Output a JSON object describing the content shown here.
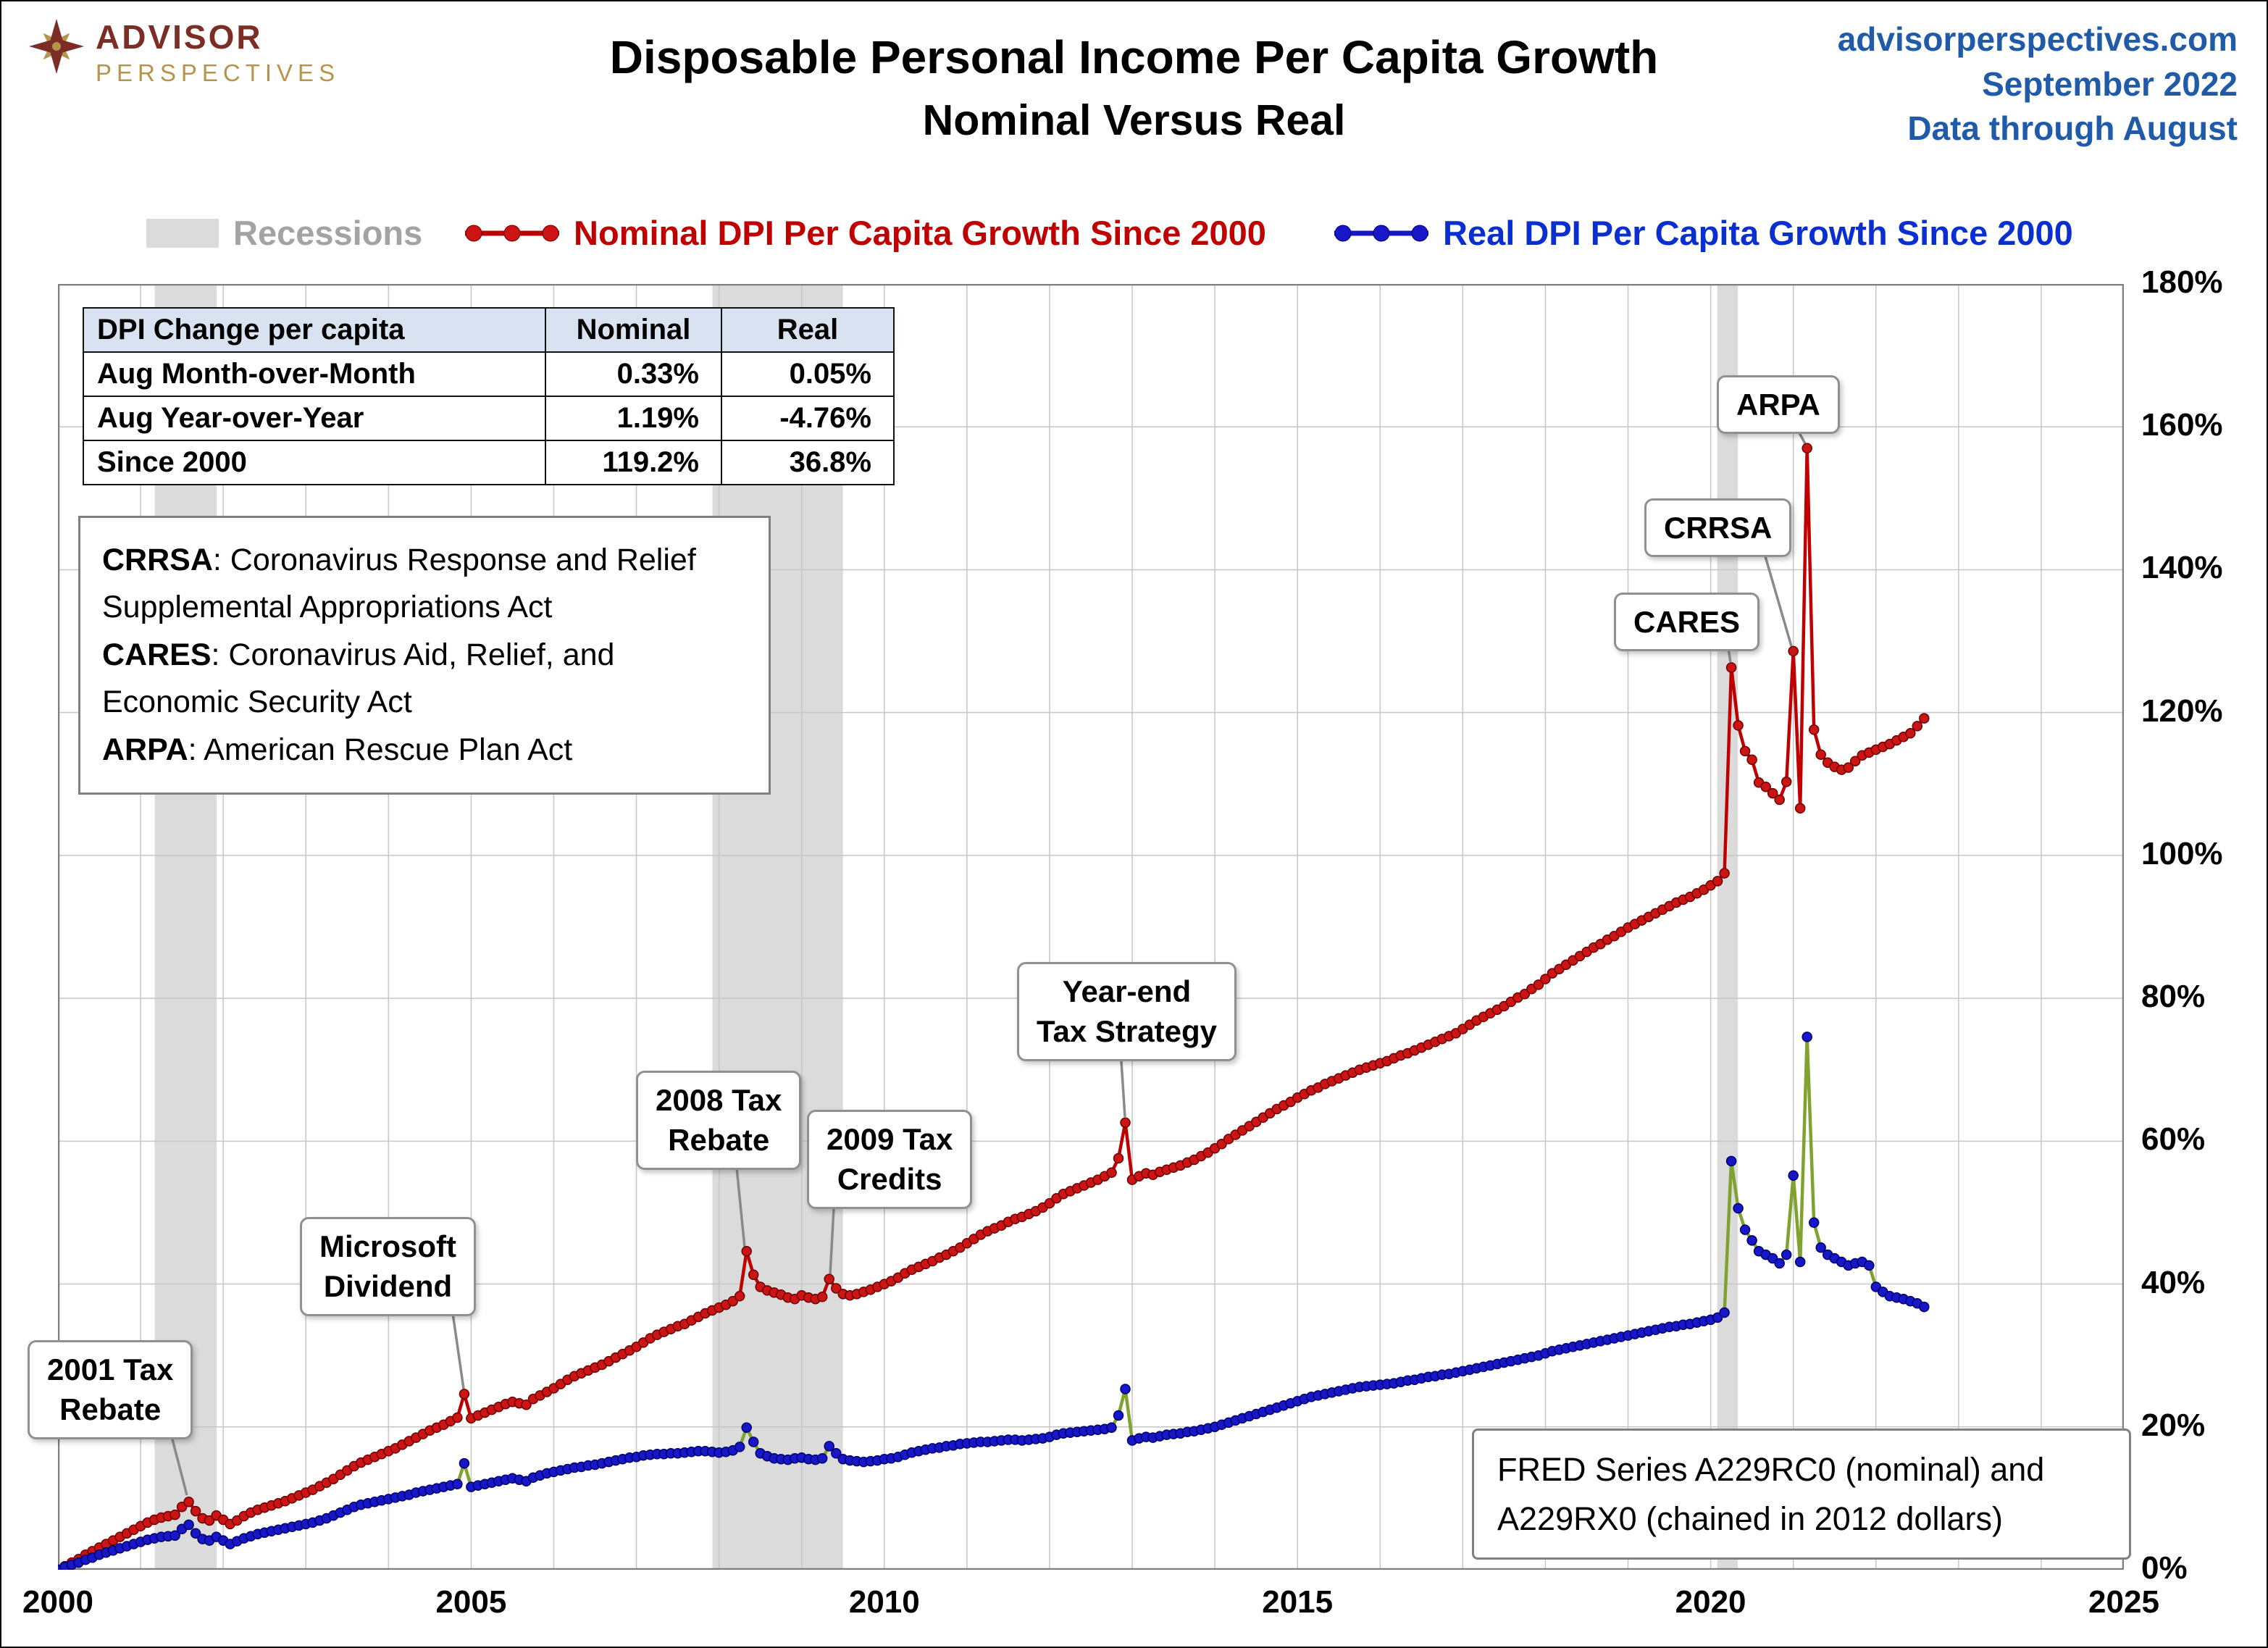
{
  "header": {
    "logo_line1": "ADVISOR",
    "logo_line2": "PERSPECTIVES",
    "title_line1": "Disposable Personal Income Per Capita Growth",
    "title_line2": "Nominal Versus Real",
    "site": "advisorperspectives.com",
    "month": "September 2022",
    "through": "Data through August"
  },
  "legend": {
    "recessions": "Recessions",
    "nominal": "Nominal DPI Per Capita Growth Since 2000",
    "real": "Real DPI Per Capita Growth Since 2000"
  },
  "table": {
    "headers": [
      "DPI Change per capita",
      "Nominal",
      "Real"
    ],
    "rows": [
      [
        "Aug Month-over-Month",
        "0.33%",
        "0.05%"
      ],
      [
        "Aug Year-over-Year",
        "1.19%",
        "-4.76%"
      ],
      [
        "Since 2000",
        "119.2%",
        "36.8%"
      ]
    ]
  },
  "definitions": [
    {
      "term": "CRRSA",
      "rest": ": Coronavirus Response and Relief Supplemental Appropriations Act"
    },
    {
      "term": "CARES",
      "rest": ": Coronavirus Aid, Relief, and Economic Security Act"
    },
    {
      "term": "ARPA",
      "rest": ": American Rescue Plan Act"
    }
  ],
  "annotations": [
    {
      "id": "2001-tax-rebate",
      "label": "2001 Tax\nRebate"
    },
    {
      "id": "microsoft-dividend",
      "label": "Microsoft\nDividend"
    },
    {
      "id": "2008-tax-rebate",
      "label": "2008 Tax\nRebate"
    },
    {
      "id": "2009-tax-credits",
      "label": "2009 Tax\nCredits"
    },
    {
      "id": "year-end-tax-strategy",
      "label": "Year-end\nTax Strategy"
    },
    {
      "id": "cares",
      "label": "CARES"
    },
    {
      "id": "crrsa",
      "label": "CRRSA"
    },
    {
      "id": "arpa",
      "label": "ARPA"
    }
  ],
  "source_note": "FRED Series A229RC0 (nominal) and A229RX0 (chained in 2012 dollars)",
  "chart_data": {
    "type": "line",
    "title": "Disposable Personal Income Per Capita Growth, Nominal Versus Real",
    "x_range": [
      2000,
      2025
    ],
    "ylim": [
      0,
      180
    ],
    "y_step": 20,
    "x_ticks": [
      [
        2000,
        "2000"
      ],
      [
        2005,
        "2005"
      ],
      [
        2010,
        "2010"
      ],
      [
        2015,
        "2015"
      ],
      [
        2020,
        "2020"
      ],
      [
        2025,
        "2025"
      ]
    ],
    "y_ticks": [
      [
        0,
        "0%"
      ],
      [
        20,
        "20%"
      ],
      [
        40,
        "40%"
      ],
      [
        60,
        "60%"
      ],
      [
        80,
        "80%"
      ],
      [
        100,
        "100%"
      ],
      [
        120,
        "120%"
      ],
      [
        140,
        "140%"
      ],
      [
        160,
        "160%"
      ],
      [
        180,
        "180%"
      ]
    ],
    "recession_color": "#DBDBDB",
    "recessions": [
      [
        2001.17,
        2001.92
      ],
      [
        2007.92,
        2009.5
      ],
      [
        2020.08,
        2020.33
      ]
    ],
    "x_unit": "decimal year, monthly data Jan 2000 - Aug 2022",
    "series": [
      {
        "key": "nominal",
        "name": "Nominal DPI Per Capita Growth Since 2000",
        "line_color": "#C00000",
        "marker_color": "#CC1414",
        "marker_edge": "#6B0000",
        "start": 2000,
        "values": [
          0,
          0.5,
          1,
          1.5,
          2.1,
          2.6,
          3.1,
          3.6,
          4.1,
          4.6,
          5.1,
          5.6,
          6.1,
          6.6,
          7,
          7.3,
          7.5,
          7.7,
          8.8,
          9.5,
          8.2,
          7.2,
          6.9,
          7.6,
          7,
          6.4,
          6.9,
          7.5,
          8,
          8.4,
          8.7,
          9,
          9.3,
          9.6,
          10,
          10.4,
          10.8,
          11.2,
          11.7,
          12.2,
          12.7,
          13.3,
          13.9,
          14.5,
          15,
          15.4,
          15.8,
          16.2,
          16.6,
          17,
          17.5,
          18,
          18.5,
          19,
          19.5,
          19.9,
          20.3,
          20.8,
          21.3,
          24.6,
          21.2,
          21.6,
          22,
          22.4,
          22.8,
          23.2,
          23.5,
          23.3,
          23.1,
          23.9,
          24.4,
          24.9,
          25.4,
          26,
          26.6,
          27.1,
          27.5,
          27.9,
          28.3,
          28.7,
          29.2,
          29.7,
          30.2,
          30.7,
          31.2,
          31.8,
          32.4,
          32.9,
          33.3,
          33.7,
          34.1,
          34.4,
          34.9,
          35.4,
          35.9,
          36.3,
          36.7,
          37.1,
          37.6,
          38.3,
          44.6,
          41.3,
          39.6,
          39.1,
          38.8,
          38.5,
          38.1,
          37.9,
          38.4,
          38.1,
          37.9,
          38.2,
          40.7,
          39.4,
          38.6,
          38.4,
          38.6,
          38.9,
          39.2,
          39.6,
          40,
          40.4,
          40.9,
          41.5,
          42,
          42.4,
          42.8,
          43.2,
          43.7,
          44.1,
          44.6,
          45.1,
          45.7,
          46.3,
          46.9,
          47.4,
          47.8,
          48.2,
          48.7,
          49.1,
          49.4,
          49.8,
          50.2,
          50.7,
          51.3,
          52,
          52.6,
          53,
          53.4,
          53.8,
          54.2,
          54.6,
          55.1,
          55.6,
          57.6,
          62.6,
          54.6,
          55.1,
          55.5,
          55.3,
          55.7,
          56,
          56.3,
          56.6,
          57,
          57.4,
          57.9,
          58.4,
          59,
          59.6,
          60.3,
          60.9,
          61.5,
          62.1,
          62.7,
          63.3,
          63.9,
          64.5,
          65,
          65.5,
          66.1,
          66.6,
          67.1,
          67.5,
          68,
          68.4,
          68.8,
          69.2,
          69.6,
          70,
          70.3,
          70.6,
          70.9,
          71.2,
          71.6,
          72,
          72.3,
          72.7,
          73.1,
          73.5,
          73.9,
          74.3,
          74.7,
          75.1,
          75.7,
          76.3,
          76.9,
          77.4,
          77.9,
          78.4,
          78.9,
          79.5,
          80.1,
          80.6,
          81.3,
          81.9,
          82.7,
          83.5,
          84.1,
          84.7,
          85.3,
          85.9,
          86.5,
          87.1,
          87.6,
          88.2,
          88.7,
          89.3,
          89.9,
          90.4,
          90.9,
          91.4,
          91.9,
          92.4,
          92.9,
          93.4,
          93.8,
          94.2,
          94.7,
          95.2,
          95.8,
          96.4,
          97.5,
          126.3,
          118.2,
          114.6,
          113.4,
          110.2,
          109.6,
          108.7,
          107.8,
          110.3,
          128.6,
          106.6,
          157,
          117.6,
          114.1,
          113,
          112.4,
          112,
          112.3,
          113.2,
          114,
          114.4,
          114.8,
          115.2,
          115.6,
          116.1,
          116.6,
          117.1,
          118.1,
          119.2
        ]
      },
      {
        "key": "real",
        "name": "Real DPI Per Capita Growth Since 2000",
        "line_color": "#7FA32E",
        "marker_color": "#1717C9",
        "marker_edge": "#00006B",
        "start": 2000,
        "values": [
          0,
          0.4,
          0.7,
          1,
          1.4,
          1.7,
          2.1,
          2.4,
          2.7,
          3,
          3.3,
          3.6,
          3.9,
          4.2,
          4.4,
          4.6,
          4.7,
          4.8,
          5.7,
          6.3,
          5.1,
          4.3,
          4.1,
          4.6,
          4.1,
          3.6,
          4,
          4.4,
          4.7,
          5,
          5.2,
          5.4,
          5.6,
          5.8,
          6,
          6.2,
          6.4,
          6.6,
          6.9,
          7.2,
          7.6,
          8,
          8.4,
          8.8,
          9.1,
          9.3,
          9.5,
          9.7,
          9.9,
          10.1,
          10.3,
          10.5,
          10.8,
          11,
          11.2,
          11.4,
          11.6,
          11.8,
          12,
          14.9,
          11.6,
          11.8,
          12,
          12.2,
          12.4,
          12.6,
          12.8,
          12.6,
          12.4,
          12.9,
          13.2,
          13.5,
          13.7,
          13.9,
          14.1,
          14.3,
          14.4,
          14.6,
          14.7,
          14.9,
          15.1,
          15.3,
          15.5,
          15.7,
          15.8,
          16,
          16.1,
          16.2,
          16.2,
          16.3,
          16.3,
          16.4,
          16.5,
          16.6,
          16.6,
          16.5,
          16.4,
          16.5,
          16.7,
          17.2,
          19.9,
          17.9,
          16.3,
          15.9,
          15.6,
          15.5,
          15.4,
          15.6,
          15.7,
          15.5,
          15.4,
          15.6,
          17.3,
          16.3,
          15.5,
          15.3,
          15.2,
          15.1,
          15.2,
          15.3,
          15.5,
          15.6,
          15.8,
          16.1,
          16.4,
          16.6,
          16.8,
          17,
          17.1,
          17.3,
          17.4,
          17.6,
          17.7,
          17.8,
          17.9,
          17.9,
          18,
          18.1,
          18.2,
          18.2,
          18.1,
          18.2,
          18.3,
          18.4,
          18.6,
          18.9,
          19.1,
          19.2,
          19.3,
          19.4,
          19.5,
          19.6,
          19.7,
          19.9,
          21.6,
          25.3,
          18.1,
          18.4,
          18.6,
          18.5,
          18.7,
          18.9,
          19,
          19.1,
          19.3,
          19.4,
          19.6,
          19.8,
          20,
          20.3,
          20.6,
          20.9,
          21.2,
          21.5,
          21.8,
          22.1,
          22.4,
          22.7,
          23,
          23.3,
          23.6,
          23.9,
          24.2,
          24.4,
          24.6,
          24.8,
          25,
          25.2,
          25.4,
          25.6,
          25.7,
          25.8,
          25.9,
          26,
          26.1,
          26.3,
          26.5,
          26.6,
          26.8,
          27,
          27.1,
          27.3,
          27.4,
          27.6,
          27.8,
          28,
          28.2,
          28.4,
          28.6,
          28.8,
          29,
          29.2,
          29.4,
          29.6,
          29.8,
          30,
          30.3,
          30.6,
          30.8,
          31,
          31.2,
          31.4,
          31.6,
          31.8,
          32,
          32.2,
          32.4,
          32.6,
          32.8,
          33,
          33.2,
          33.4,
          33.6,
          33.8,
          34,
          34.1,
          34.3,
          34.4,
          34.6,
          34.8,
          35,
          35.3,
          36,
          57.2,
          50.6,
          47.6,
          46.1,
          44.6,
          44.1,
          43.6,
          42.9,
          44.1,
          55.2,
          43.1,
          74.6,
          48.6,
          45.1,
          44.1,
          43.6,
          43.1,
          42.6,
          42.9,
          43.1,
          42.6,
          39.6,
          38.9,
          38.3,
          38.1,
          37.9,
          37.6,
          37.3,
          36.8
        ]
      }
    ]
  }
}
